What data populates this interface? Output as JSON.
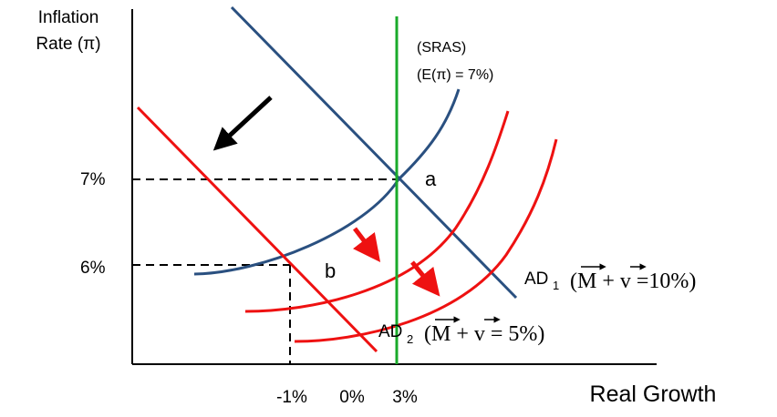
{
  "y_axis": {
    "title_line1": "Inflation",
    "title_line2": "Rate (π)"
  },
  "x_axis": {
    "title": "Real Growth"
  },
  "y_ticks": {
    "high": "7%",
    "low": "6%"
  },
  "x_ticks": {
    "neg": "-1%",
    "zero": "0%",
    "pos": "3%"
  },
  "sras": {
    "line1": "(SRAS)",
    "line2": "(E(π) = 7%)"
  },
  "points": {
    "a": "a",
    "b": "b"
  },
  "ad1": {
    "name": "AD",
    "sub": "1",
    "formula": "(M + v =10%)"
  },
  "ad2": {
    "name": "AD",
    "sub": "2",
    "formula": "(M + v = 5%)"
  },
  "colors": {
    "blue": "#2a5080",
    "red": "#ee1111",
    "green": "#1aaa2a",
    "black": "#000000"
  },
  "icons": [
    "shift-arrow-icon",
    "vector-arrow-icon"
  ]
}
